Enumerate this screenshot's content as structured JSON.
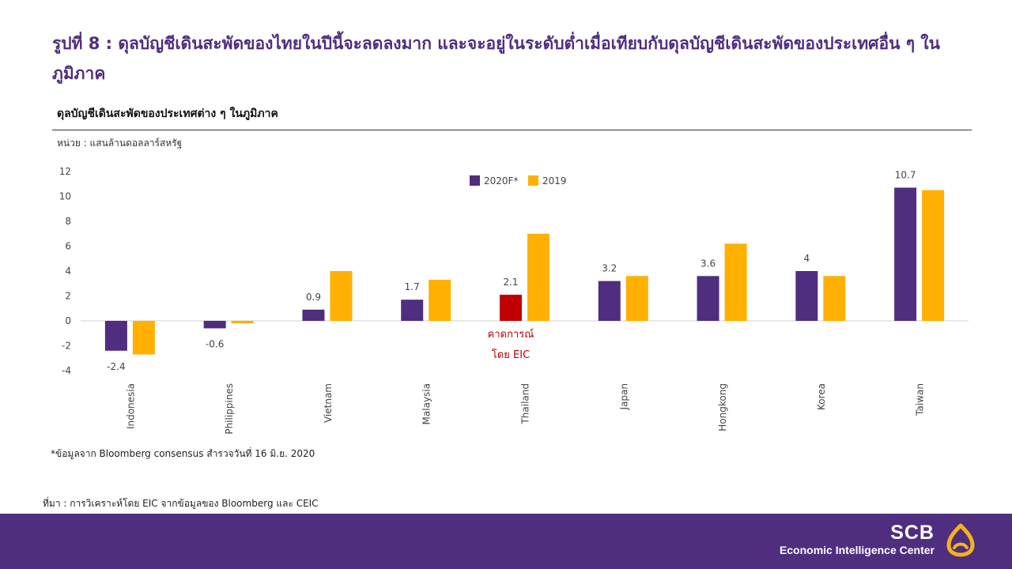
{
  "slide": {
    "title": "รูปที่ 8 : ดุลบัญชีเดินสะพัดของไทยในปีนี้จะลดลงมาก และจะอยู่ในระดับต่ำเมื่อเทียบกับดุลบัญชีเดินสะพัดของประเทศอื่น ๆ ในภูมิภาค",
    "footnote": "*ข้อมูลจาก Bloomberg consensus สำรวจวันที่ 16 มิ.ย. 2020",
    "source": "ที่มา : การวิเคราะห์โดย EIC จากข้อมูลของ Bloomberg และ CEIC"
  },
  "branding": {
    "name": "SCB",
    "subtitle": "Economic Intelligence Center",
    "logo_icon": "scb-lotus-icon",
    "band_color": "#4f2d7f",
    "logo_color": "#f5b21a"
  },
  "chart_data": {
    "type": "bar",
    "title": "ดุลบัญชีเดินสะพัดของประเทศต่าง ๆ ในภูมิภาค",
    "unit_label": "หน่วย : แสนล้านดอลลาร์สหรัฐ",
    "categories": [
      "Indonesia",
      "Philippines",
      "Vietnam",
      "Malaysia",
      "Thailand",
      "Japan",
      "Hongkong",
      "Korea",
      "Taiwan"
    ],
    "series": [
      {
        "name": "2020F*",
        "color": "#4f2d7f",
        "values": [
          -2.4,
          -0.6,
          0.9,
          1.7,
          2.1,
          3.2,
          3.6,
          4,
          10.7
        ],
        "labels": [
          "-2.4",
          "-0.6",
          "0.9",
          "1.7",
          "2.1",
          "3.2",
          "3.6",
          "4",
          "10.7"
        ]
      },
      {
        "name": "2019",
        "color": "#ffb000",
        "values": [
          -2.7,
          -0.2,
          4.0,
          3.3,
          7.0,
          3.6,
          6.2,
          3.6,
          10.5
        ]
      }
    ],
    "highlight": {
      "category": "Thailand",
      "series": "2020F*",
      "color": "#c00000",
      "annotation": [
        "คาดการณ์",
        "โดย EIC"
      ]
    },
    "ylim": [
      -4,
      12
    ],
    "yticks": [
      -4,
      -2,
      0,
      2,
      4,
      6,
      8,
      10,
      12
    ],
    "grid": false,
    "legend_position": "top-center"
  }
}
